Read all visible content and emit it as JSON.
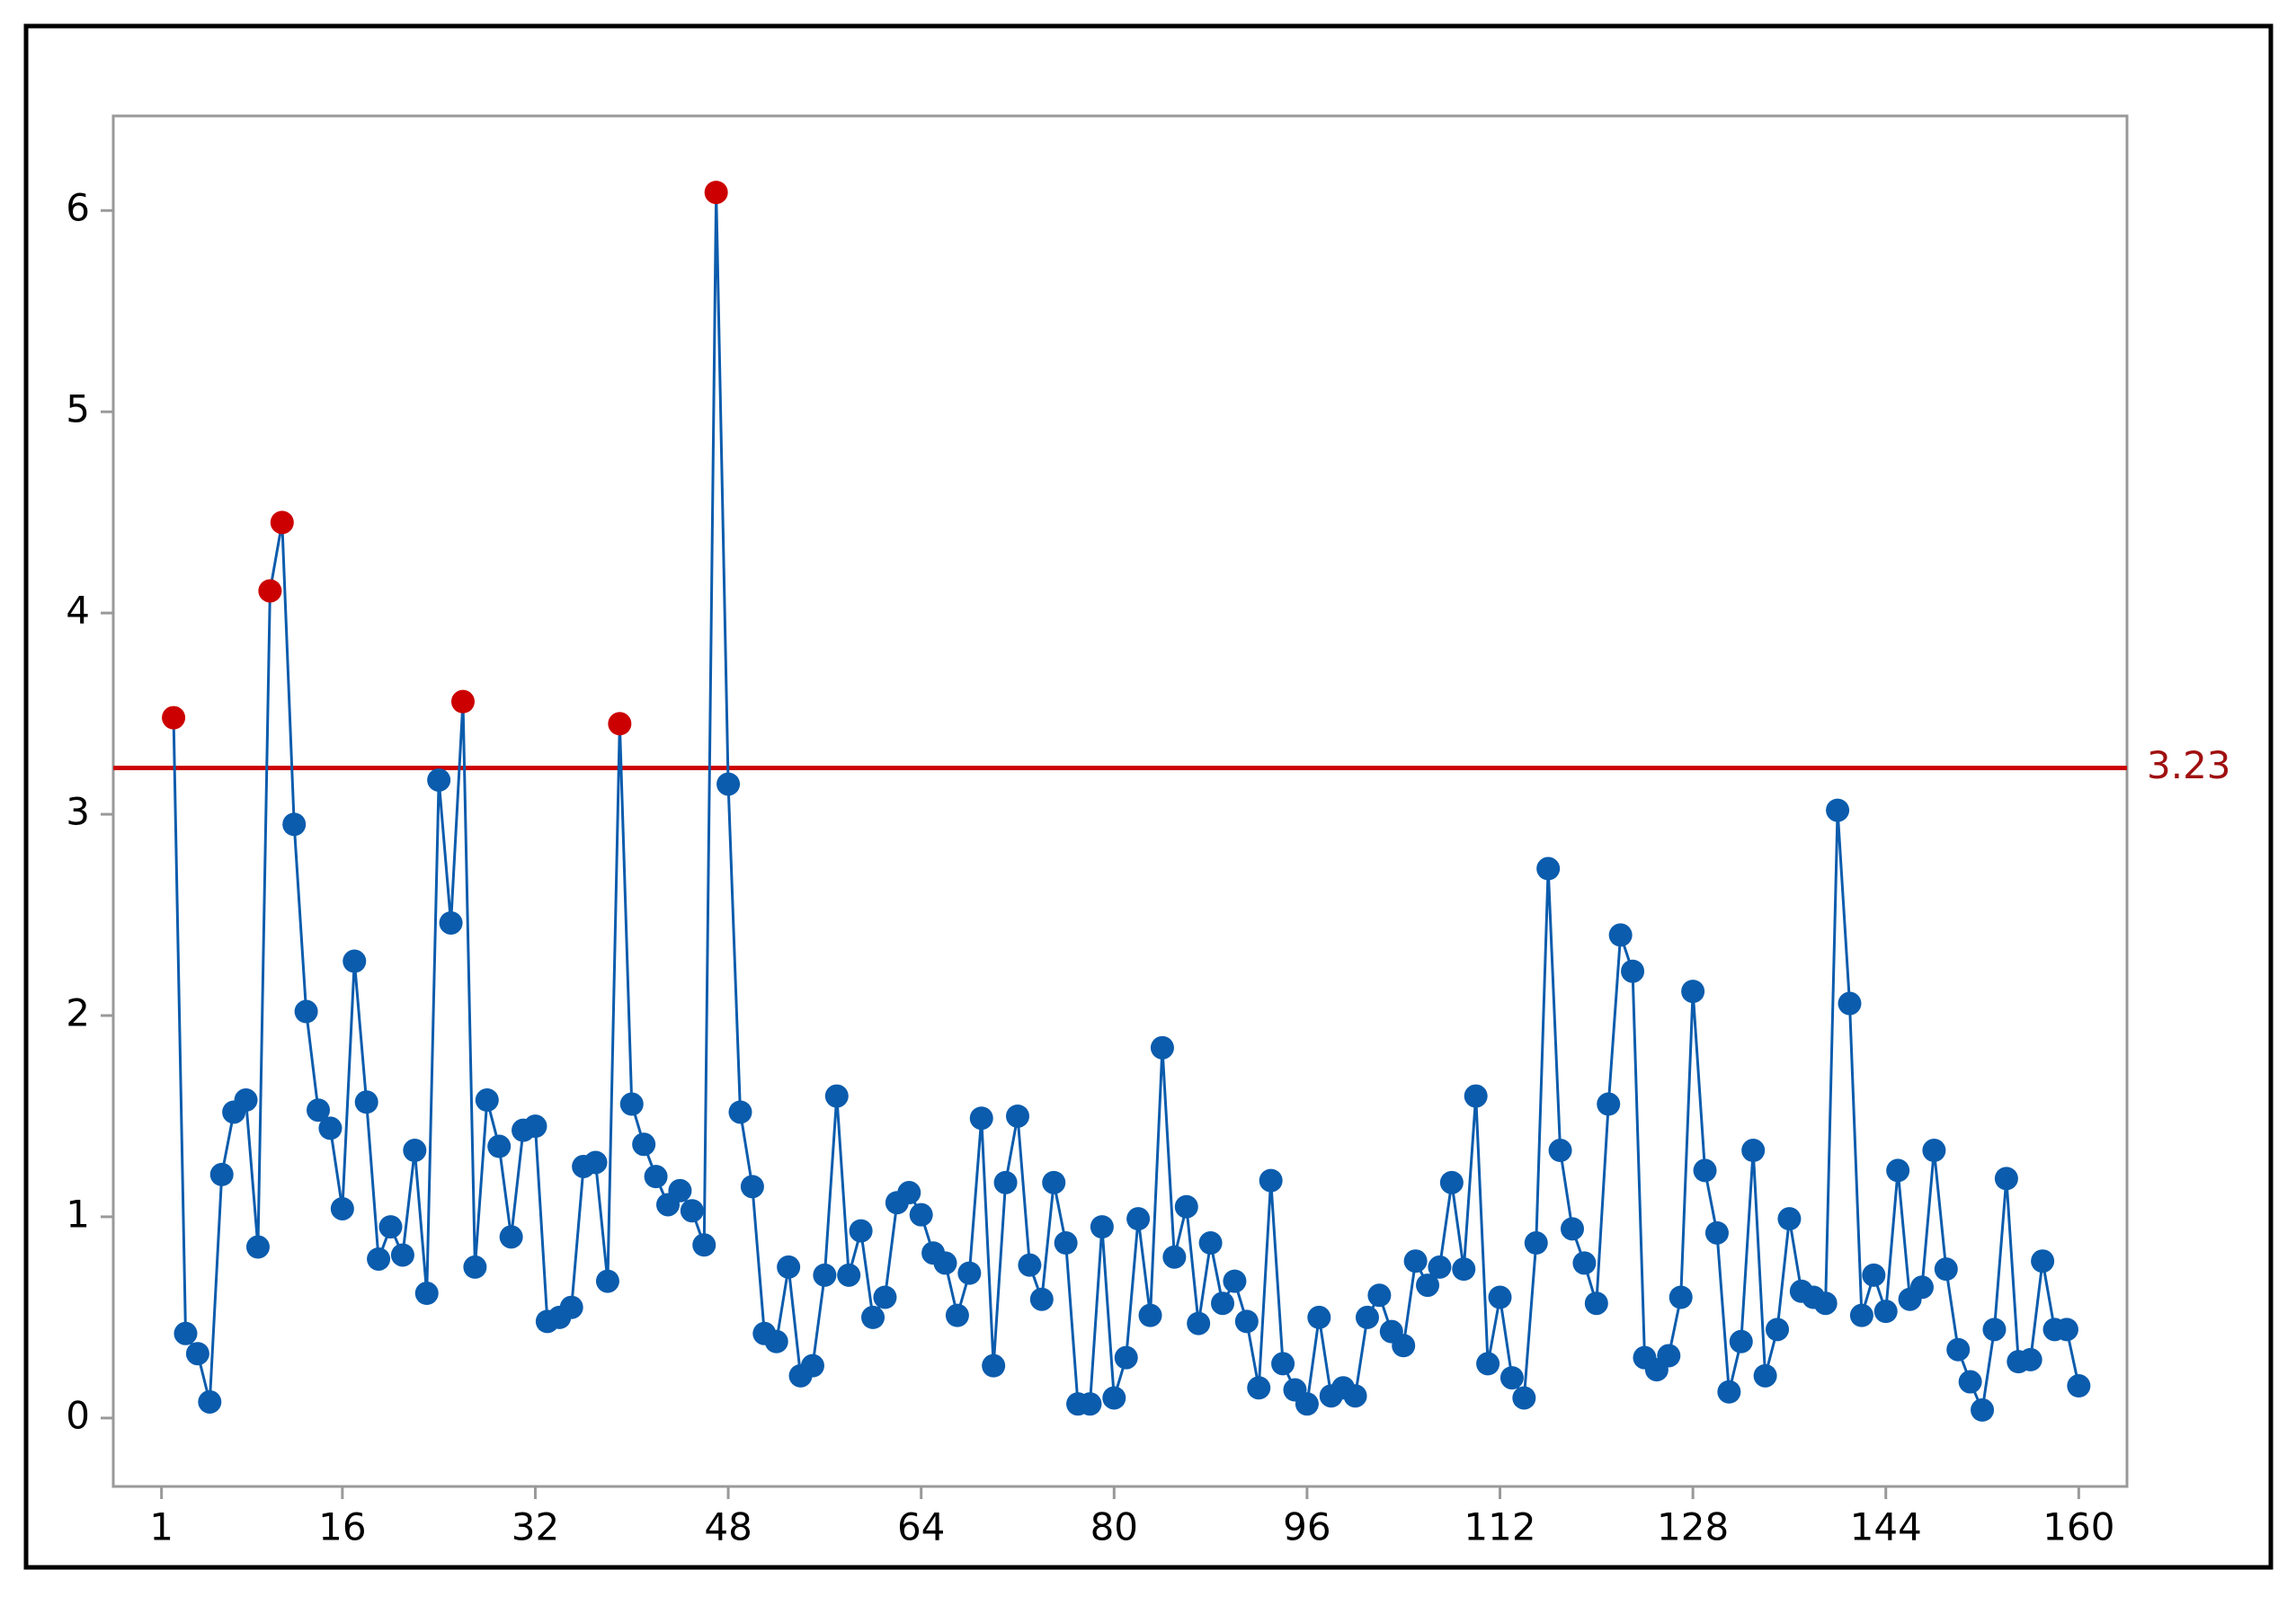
{
  "chart_data": {
    "type": "line",
    "x": [
      2,
      3,
      4,
      5,
      6,
      7,
      8,
      9,
      10,
      11,
      12,
      13,
      14,
      15,
      16,
      17,
      18,
      19,
      20,
      21,
      22,
      23,
      24,
      25,
      26,
      27,
      28,
      29,
      30,
      31,
      32,
      33,
      34,
      35,
      36,
      37,
      38,
      39,
      40,
      41,
      42,
      43,
      44,
      45,
      46,
      47,
      48,
      49,
      50,
      51,
      52,
      53,
      54,
      55,
      56,
      57,
      58,
      59,
      60,
      61,
      62,
      63,
      64,
      65,
      66,
      67,
      68,
      69,
      70,
      71,
      72,
      73,
      74,
      75,
      76,
      77,
      78,
      79,
      80,
      81,
      82,
      83,
      84,
      85,
      86,
      87,
      88,
      89,
      90,
      91,
      92,
      93,
      94,
      95,
      96,
      97,
      98,
      99,
      100,
      101,
      102,
      103,
      104,
      105,
      106,
      107,
      108,
      109,
      110,
      111,
      112,
      113,
      114,
      115,
      116,
      117,
      118,
      119,
      120,
      121,
      122,
      123,
      124,
      125,
      126,
      127,
      128,
      129,
      130,
      131,
      132,
      133,
      134,
      135,
      136,
      137,
      138,
      139,
      140,
      141,
      142,
      143,
      144,
      145,
      146,
      147,
      148,
      149,
      150,
      151,
      152,
      153,
      154,
      155,
      156,
      157,
      158,
      159,
      160
    ],
    "series": [
      {
        "color": "#0b5cad",
        "out_color": "#cc0000",
        "values": [
          3.48,
          0.42,
          0.32,
          0.08,
          1.21,
          1.52,
          1.58,
          0.85,
          4.11,
          4.45,
          2.95,
          2.02,
          1.53,
          1.44,
          1.04,
          2.27,
          1.57,
          0.79,
          0.95,
          0.81,
          1.33,
          0.62,
          3.17,
          2.46,
          3.56,
          0.75,
          1.58,
          1.35,
          0.9,
          1.43,
          1.45,
          0.48,
          0.5,
          0.55,
          1.25,
          1.27,
          0.68,
          3.45,
          1.56,
          1.36,
          1.2,
          1.06,
          1.13,
          1.03,
          0.86,
          6.09,
          3.15,
          1.52,
          1.15,
          0.42,
          0.38,
          0.75,
          0.21,
          0.26,
          0.71,
          1.6,
          0.71,
          0.93,
          0.5,
          0.6,
          1.07,
          1.12,
          1.01,
          0.82,
          0.77,
          0.51,
          0.72,
          1.49,
          0.26,
          1.17,
          1.5,
          0.76,
          0.59,
          1.17,
          0.87,
          0.07,
          0.07,
          0.95,
          0.1,
          0.3,
          0.99,
          0.51,
          1.84,
          0.8,
          1.05,
          0.47,
          0.87,
          0.57,
          0.68,
          0.48,
          0.15,
          1.18,
          0.27,
          0.14,
          0.07,
          0.5,
          0.11,
          0.15,
          0.11,
          0.5,
          0.61,
          0.43,
          0.36,
          0.78,
          0.66,
          0.75,
          1.17,
          0.74,
          1.6,
          0.27,
          0.6,
          0.2,
          0.1,
          0.87,
          2.73,
          1.33,
          0.94,
          0.77,
          0.57,
          1.56,
          2.4,
          2.22,
          0.3,
          0.24,
          0.31,
          0.6,
          2.12,
          1.23,
          0.92,
          0.13,
          0.38,
          1.33,
          0.21,
          0.44,
          0.99,
          0.63,
          0.6,
          0.57,
          3.02,
          2.06,
          0.51,
          0.71,
          0.53,
          1.23,
          0.59,
          0.65,
          1.33,
          0.74,
          0.34,
          0.18,
          0.04,
          0.44,
          1.19,
          0.28,
          0.29,
          0.78,
          0.44,
          0.44,
          0.16
        ]
      }
    ],
    "reference_lines": [
      {
        "value": 3.23,
        "color": "#cc0000",
        "label_color": "#a01010"
      }
    ],
    "xlim": [
      -3,
      164
    ],
    "xticks": [
      1,
      16,
      32,
      48,
      64,
      80,
      96,
      112,
      128,
      144,
      160
    ],
    "ylim": [
      -0.34,
      6.47
    ],
    "yticks": [
      0,
      1,
      2,
      3,
      4,
      5,
      6
    ]
  }
}
